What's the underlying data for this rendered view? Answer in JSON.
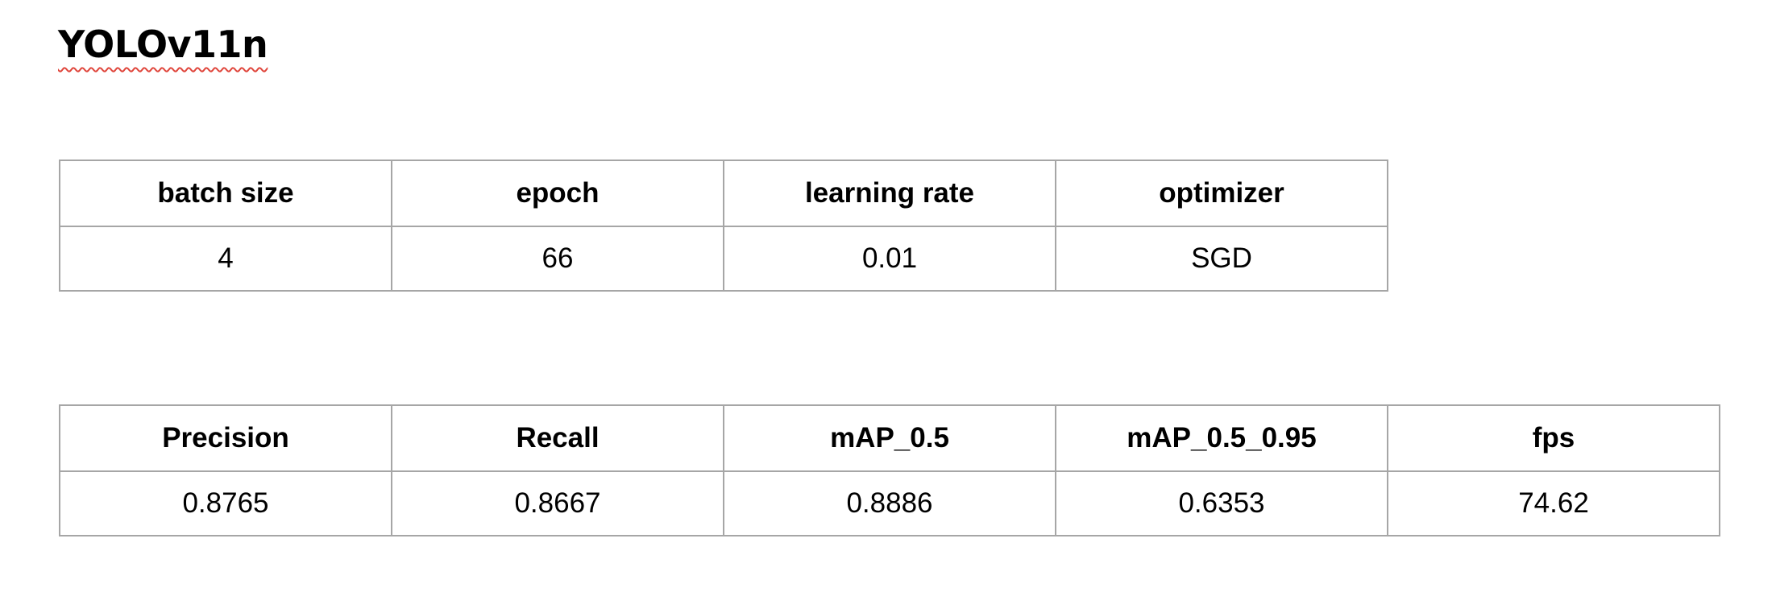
{
  "document": {
    "title": "YOLOv11n"
  },
  "params_table": {
    "headers": [
      "batch size",
      "epoch",
      "learning rate",
      "optimizer"
    ],
    "values": [
      "4",
      "66",
      "0.01",
      "SGD"
    ]
  },
  "metrics_table": {
    "headers": [
      "Precision",
      "Recall",
      "mAP_0.5",
      "mAP_0.5_0.95",
      "fps"
    ],
    "values": [
      "0.8765",
      "0.8667",
      "0.8886",
      "0.6353",
      "74.62"
    ]
  },
  "colors": {
    "border": "#a6a6a6",
    "spellcheck_underline": "#e0463c",
    "text": "#000000"
  }
}
